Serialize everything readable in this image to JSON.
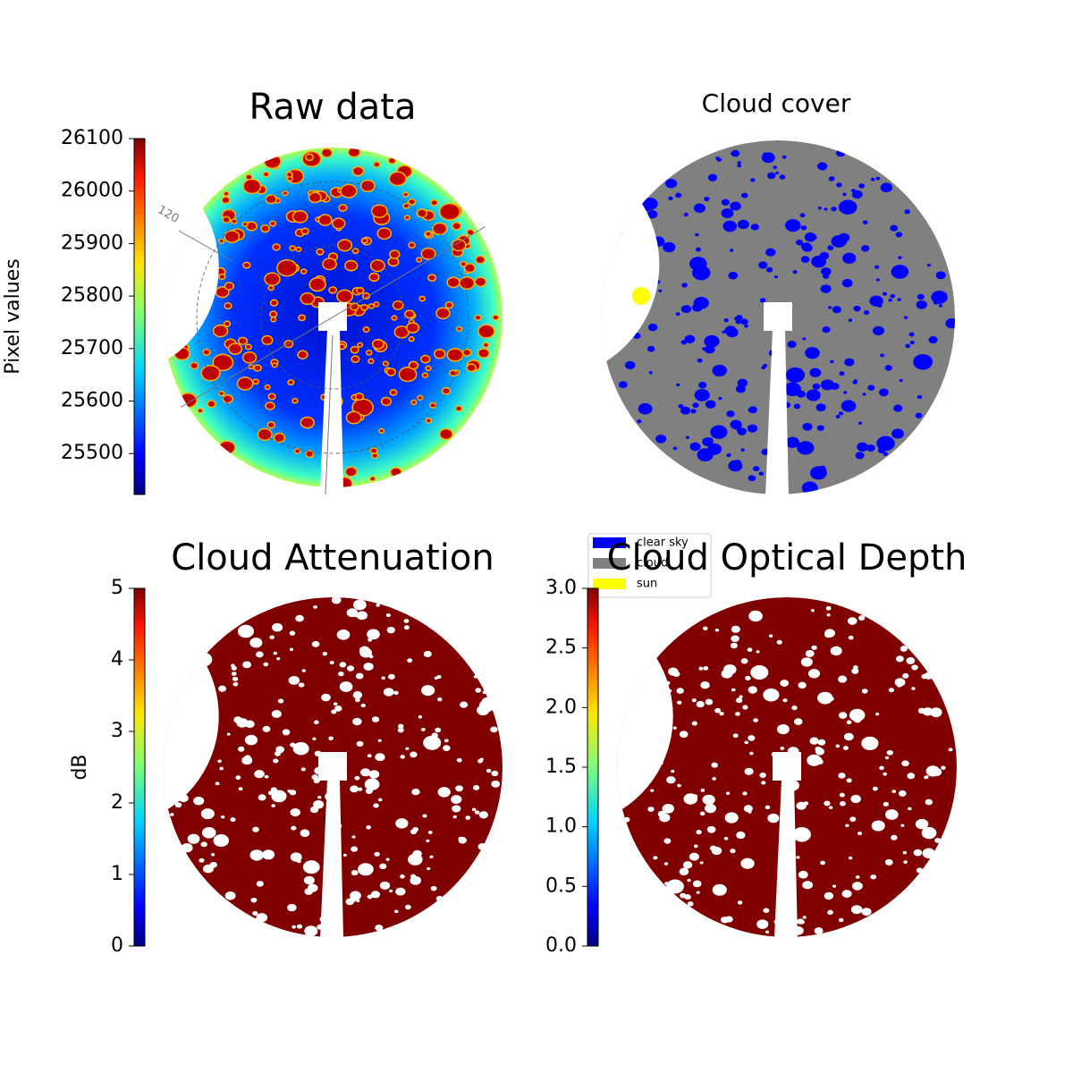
{
  "chart_data": [
    {
      "type": "image",
      "title": "Raw data",
      "colormap": "jet",
      "colorbar_label": "Pixel values",
      "clim": [
        25422,
        26100
      ],
      "cticks": [
        25500,
        25600,
        25700,
        25800,
        25900,
        26000,
        26100
      ],
      "annotation": "120"
    },
    {
      "type": "mask",
      "title": "Cloud cover",
      "legend": [
        {
          "name": "clear sky",
          "color": "#0000ff"
        },
        {
          "name": "cloud",
          "color": "#808080"
        },
        {
          "name": "sun",
          "color": "#ffff00"
        }
      ]
    },
    {
      "type": "image",
      "title": "Cloud Attenuation",
      "colormap": "jet",
      "colorbar_label": "dB",
      "clim": [
        0,
        5
      ],
      "cticks": [
        0,
        1,
        2,
        3,
        4,
        5
      ]
    },
    {
      "type": "image",
      "title": "Cloud Optical Depth",
      "colormap": "jet",
      "clim": [
        0,
        3
      ],
      "cticks": [
        {
          "value": 0,
          "label": "0.0"
        },
        {
          "value": 0.5,
          "label": "0.5"
        },
        {
          "value": 1,
          "label": "1.0"
        },
        {
          "value": 1.5,
          "label": "1.5"
        },
        {
          "value": 2,
          "label": "2.0"
        },
        {
          "value": 2.5,
          "label": "2.5"
        },
        {
          "value": 3,
          "label": "3.0"
        }
      ]
    }
  ]
}
